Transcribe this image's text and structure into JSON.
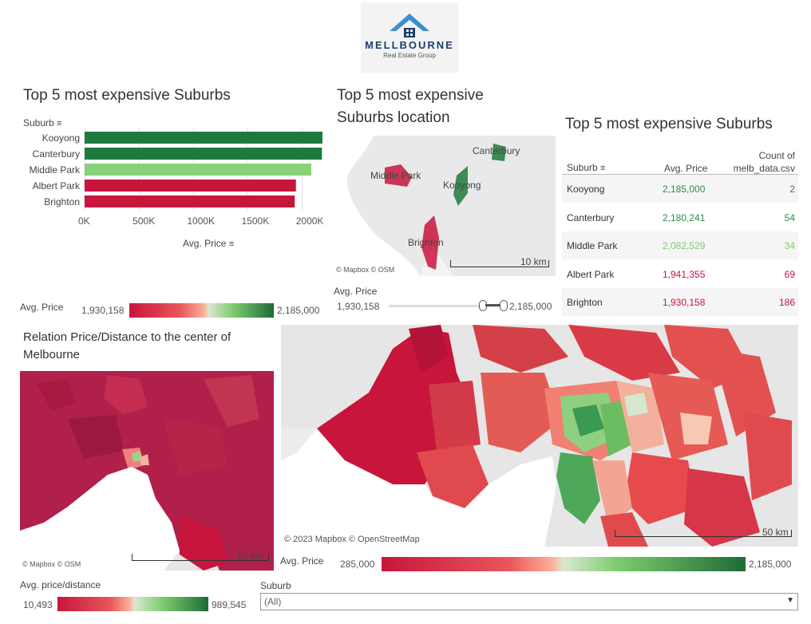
{
  "logo": {
    "name": "MELLBOURNE",
    "tagline": "Real Estate Group"
  },
  "bar_section": {
    "title": "Top 5 most expensive Suburbs",
    "dimension_label": "Suburb",
    "measure_label": "Avg. Price",
    "colors": {
      "high": "#1e7a3c",
      "mid": "#88d178",
      "low": "#c8153c"
    }
  },
  "location_section": {
    "title_line1": "Top 5 most expensive",
    "title_line2": "Suburbs location",
    "labels": [
      "Canterbury",
      "Middle Park",
      "Kooyong",
      "Brighton"
    ],
    "scale": "10 km",
    "credit": "© Mapbox  © OSM",
    "filter_label": "Avg. Price",
    "filter_min": "1,930,158",
    "filter_max": "2,185,000"
  },
  "table_section": {
    "title": "Top 5 most expensive Suburbs",
    "col_suburb": "Suburb",
    "col_price": "Avg. Price",
    "col_count_line1": "Count of",
    "col_count_line2": "melb_data.csv",
    "rows": [
      {
        "suburb": "Kooyong",
        "price": "2,185,000",
        "count": "2",
        "color": "#2e8b4a"
      },
      {
        "suburb": "Canterbury",
        "price": "2,180,241",
        "count": "54",
        "color": "#2e8b4a"
      },
      {
        "suburb": "Middle Park",
        "price": "2,082,529",
        "count": "34",
        "color": "#7ccb6c"
      },
      {
        "suburb": "Albert Park",
        "price": "1,941,355",
        "count": "69",
        "color": "#c8153c"
      },
      {
        "suburb": "Brighton",
        "price": "1,930,158",
        "count": "186",
        "color": "#c8153c"
      }
    ]
  },
  "avg_price_legend_top": {
    "label": "Avg. Price",
    "min": "1,930,158",
    "max": "2,185,000"
  },
  "relation_section": {
    "title_line1": "Relation Price/Distance to the center of",
    "title_line2": "Melbourne",
    "scale": "50 km",
    "credit": "© Mapbox  © OSM"
  },
  "big_map": {
    "credit": "© 2023 Mapbox  © OpenStreetMap",
    "scale": "50 km"
  },
  "avg_price_legend_bottom": {
    "label": "Avg. Price",
    "min": "285,000",
    "max": "2,185,000"
  },
  "price_distance_legend": {
    "label": "Avg. price/distance",
    "min": "10,493",
    "max": "989,545"
  },
  "suburb_filter": {
    "label": "Suburb",
    "value": "(All)"
  },
  "chart_data": {
    "type": "bar",
    "categories": [
      "Kooyong",
      "Canterbury",
      "Middle Park",
      "Albert Park",
      "Brighton"
    ],
    "values": [
      2185000,
      2180241,
      2082529,
      1941355,
      1930158
    ],
    "title": "Top 5 most expensive Suburbs",
    "xlabel": "Avg. Price",
    "ylabel": "Suburb",
    "xlim": [
      0,
      2200000
    ],
    "x_ticks": [
      "0K",
      "500K",
      "1000K",
      "1500K",
      "2000K"
    ],
    "grid": true
  }
}
